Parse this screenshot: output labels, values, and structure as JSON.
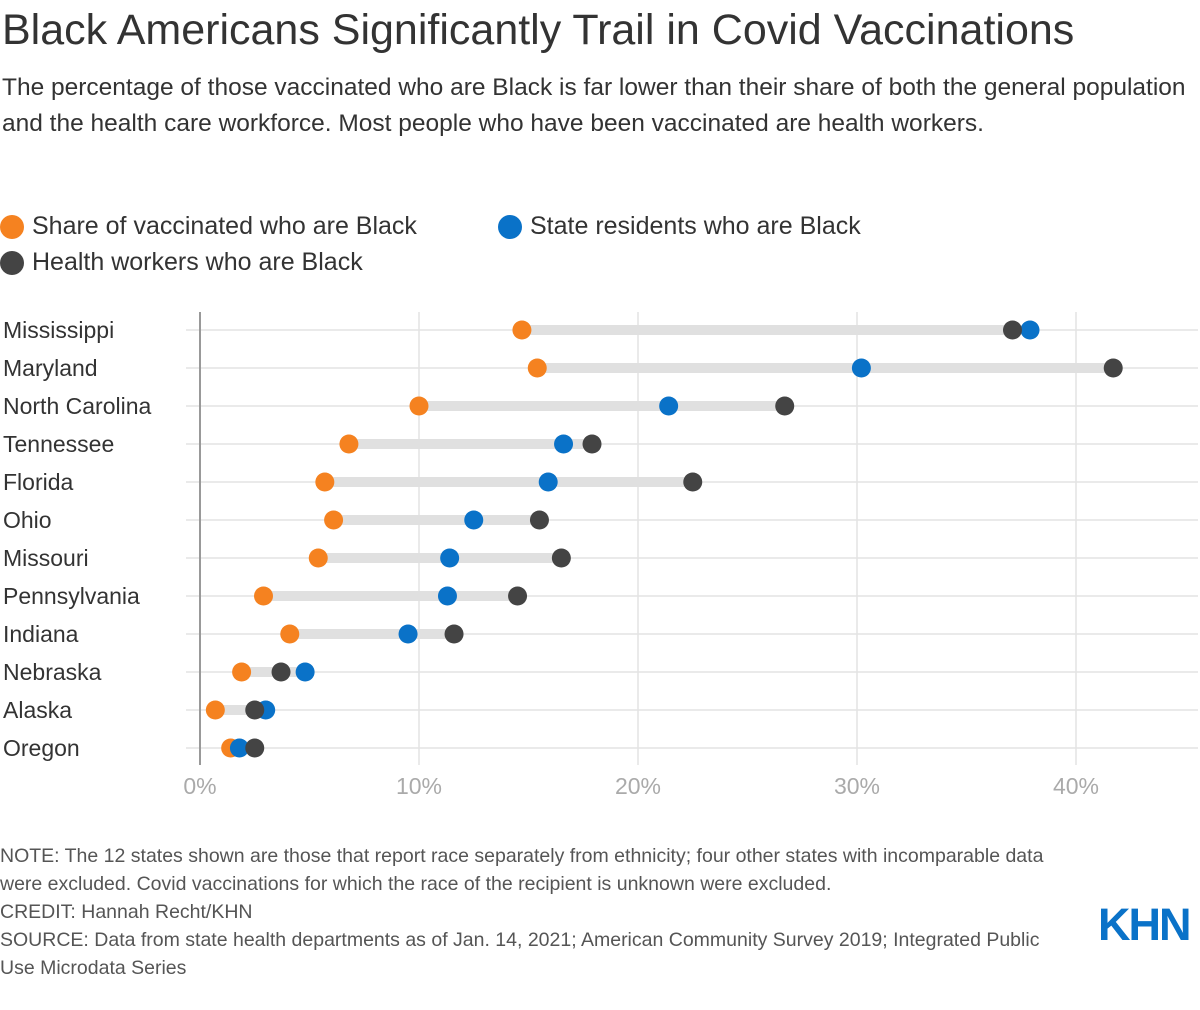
{
  "chart_data": {
    "type": "dot-range",
    "title": "Black Americans Significantly Trail in Covid Vaccinations",
    "subtitle": "The percentage of those vaccinated who are Black is far lower than their share of both the general population and the health care workforce. Most people who have been vaccinated are health workers.",
    "categories": [
      "Mississippi",
      "Maryland",
      "North Carolina",
      "Tennessee",
      "Florida",
      "Ohio",
      "Missouri",
      "Pennsylvania",
      "Indiana",
      "Nebraska",
      "Alaska",
      "Oregon"
    ],
    "series": [
      {
        "name": "Share of vaccinated who are Black",
        "color": "#f58220",
        "values": [
          14.7,
          15.4,
          10.0,
          6.8,
          5.7,
          6.1,
          5.4,
          2.9,
          4.1,
          1.9,
          0.7,
          1.4
        ]
      },
      {
        "name": "State residents who are Black",
        "color": "#0a72c8",
        "values": [
          37.9,
          30.2,
          21.4,
          16.6,
          15.9,
          12.5,
          11.4,
          11.3,
          9.5,
          4.8,
          3.0,
          1.8
        ]
      },
      {
        "name": "Health workers who are Black",
        "color": "#444444",
        "values": [
          37.1,
          41.7,
          26.7,
          17.9,
          22.5,
          15.5,
          16.5,
          14.5,
          11.6,
          3.7,
          2.5,
          2.5
        ]
      }
    ],
    "xlim": [
      0,
      45
    ],
    "xticks": [
      0,
      10,
      20,
      30,
      40
    ],
    "xtick_labels": [
      "0%",
      "10%",
      "20%",
      "30%",
      "40%"
    ],
    "grid": true,
    "legend_position": "top-left"
  },
  "notes": {
    "note": "NOTE: The 12 states shown are those that report race separately from ethnicity; four other states with incomparable data were excluded. Covid vaccinations for which the race of the recipient is unknown were excluded.",
    "credit": "CREDIT: Hannah Recht/KHN",
    "source": "SOURCE: Data from state health departments as of Jan. 14, 2021; American Community Survey 2019; Integrated Public Use Microdata Series"
  },
  "logo": "KHN"
}
